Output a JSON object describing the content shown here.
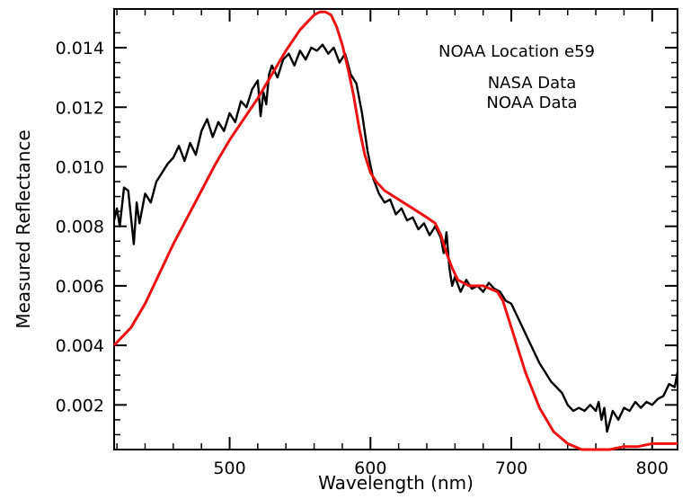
{
  "chart_data": {
    "type": "line",
    "title": "",
    "annotation": "NOAA Location e59",
    "xlabel": "Wavelength (nm)",
    "ylabel": "Measured Reflectance",
    "xlim": [
      418,
      818
    ],
    "ylim": [
      0.0005,
      0.0153
    ],
    "xticks": [
      500,
      600,
      700,
      800
    ],
    "xtick_labels": [
      "500",
      "600",
      "700",
      "800"
    ],
    "yticks": [
      0.002,
      0.004,
      0.006,
      0.008,
      0.01,
      0.012,
      0.014
    ],
    "ytick_labels": [
      "0.002",
      "0.004",
      "0.006",
      "0.008",
      "0.010",
      "0.012",
      "0.014"
    ],
    "grid": false,
    "legend_position": "top-right",
    "series": [
      {
        "name": "NASA Data",
        "color": "#000000",
        "x": [
          418,
          420,
          422,
          425,
          428,
          432,
          434,
          436,
          440,
          444,
          448,
          452,
          456,
          460,
          464,
          468,
          472,
          476,
          480,
          484,
          488,
          492,
          496,
          500,
          504,
          508,
          512,
          516,
          520,
          522,
          524,
          526,
          528,
          530,
          534,
          538,
          542,
          546,
          550,
          554,
          558,
          562,
          566,
          570,
          574,
          578,
          582,
          586,
          590,
          594,
          598,
          602,
          606,
          610,
          614,
          618,
          622,
          626,
          630,
          634,
          638,
          642,
          646,
          650,
          652,
          654,
          656,
          658,
          660,
          664,
          668,
          672,
          676,
          680,
          684,
          688,
          692,
          696,
          700,
          704,
          708,
          712,
          716,
          720,
          724,
          728,
          732,
          736,
          740,
          744,
          748,
          752,
          756,
          760,
          762,
          764,
          766,
          768,
          772,
          776,
          780,
          784,
          788,
          792,
          796,
          800,
          804,
          808,
          812,
          816,
          818
        ],
        "y": [
          0.0082,
          0.0086,
          0.008,
          0.0093,
          0.0092,
          0.0074,
          0.0088,
          0.0081,
          0.0091,
          0.0088,
          0.0095,
          0.0098,
          0.0101,
          0.0103,
          0.0107,
          0.0102,
          0.0108,
          0.0104,
          0.0112,
          0.0116,
          0.011,
          0.0115,
          0.0112,
          0.0118,
          0.0115,
          0.0122,
          0.012,
          0.0126,
          0.0129,
          0.0117,
          0.0125,
          0.0121,
          0.0131,
          0.0134,
          0.013,
          0.0136,
          0.0138,
          0.0134,
          0.0139,
          0.0136,
          0.014,
          0.0139,
          0.0141,
          0.0138,
          0.014,
          0.0135,
          0.0138,
          0.0131,
          0.0128,
          0.0118,
          0.0105,
          0.0096,
          0.0091,
          0.0088,
          0.0089,
          0.0084,
          0.0086,
          0.0082,
          0.0083,
          0.0079,
          0.0081,
          0.0077,
          0.008,
          0.0076,
          0.0071,
          0.0078,
          0.0066,
          0.006,
          0.0063,
          0.0058,
          0.0062,
          0.0059,
          0.006,
          0.0058,
          0.0061,
          0.0059,
          0.0058,
          0.0055,
          0.0054,
          0.005,
          0.0046,
          0.0042,
          0.0038,
          0.0034,
          0.0031,
          0.0028,
          0.0026,
          0.0024,
          0.002,
          0.0018,
          0.0019,
          0.0018,
          0.002,
          0.0018,
          0.0021,
          0.0015,
          0.0019,
          0.0011,
          0.0018,
          0.0015,
          0.0019,
          0.0018,
          0.0021,
          0.0019,
          0.0021,
          0.002,
          0.0022,
          0.0023,
          0.0027,
          0.0026,
          0.0031
        ]
      },
      {
        "name": "NOAA Data",
        "color": "#ee1111",
        "x": [
          418,
          430,
          440,
          450,
          460,
          470,
          480,
          490,
          500,
          510,
          520,
          530,
          540,
          550,
          556,
          560,
          564,
          568,
          572,
          576,
          580,
          584,
          588,
          592,
          596,
          600,
          604,
          610,
          620,
          630,
          640,
          646,
          650,
          654,
          658,
          662,
          666,
          670,
          680,
          690,
          694,
          698,
          702,
          710,
          720,
          730,
          740,
          750,
          760,
          770,
          780,
          790,
          800,
          810,
          818
        ],
        "y": [
          0.004,
          0.0046,
          0.0054,
          0.0064,
          0.0074,
          0.0083,
          0.0092,
          0.0101,
          0.0109,
          0.0116,
          0.0123,
          0.0131,
          0.0139,
          0.0146,
          0.0149,
          0.0151,
          0.0152,
          0.0152,
          0.0151,
          0.0147,
          0.0141,
          0.0133,
          0.0124,
          0.0113,
          0.0104,
          0.0098,
          0.0095,
          0.0092,
          0.0089,
          0.0086,
          0.0083,
          0.0081,
          0.0077,
          0.0071,
          0.0066,
          0.0062,
          0.0061,
          0.006,
          0.006,
          0.0058,
          0.0055,
          0.0049,
          0.0043,
          0.0031,
          0.0019,
          0.0011,
          0.0007,
          0.0005,
          0.0005,
          0.0005,
          0.0006,
          0.0006,
          0.0007,
          0.0007,
          0.0007
        ]
      }
    ]
  }
}
